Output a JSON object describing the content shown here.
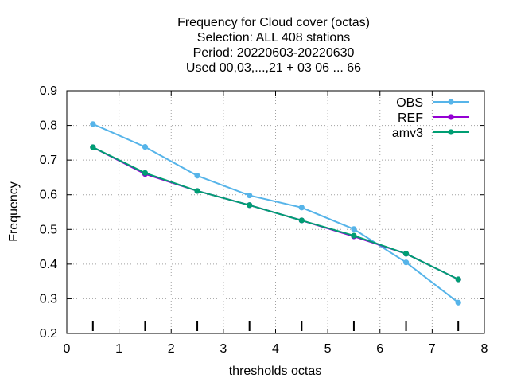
{
  "chart_data": {
    "type": "line",
    "title_lines": [
      "Frequency  for Cloud cover (octas)",
      "Selection: ALL    408 stations",
      "Period: 20220603-20220630",
      "Used  00,03,...,21  + 03 06 ... 66"
    ],
    "xlabel": "thresholds octas",
    "ylabel": "Frequency",
    "xlim": [
      0,
      8
    ],
    "ylim": [
      0.2,
      0.9
    ],
    "xticks": [
      0,
      1,
      2,
      3,
      4,
      5,
      6,
      7,
      8
    ],
    "yticks": [
      0.2,
      0.3,
      0.4,
      0.5,
      0.6,
      0.7,
      0.8,
      0.9
    ],
    "xtick_labels": [
      "0",
      "1",
      "2",
      "3",
      "4",
      "5",
      "6",
      "7",
      "8"
    ],
    "ytick_labels": [
      "0.2",
      "0.3",
      "0.4",
      "0.5",
      "0.6",
      "0.7",
      "0.8",
      "0.9"
    ],
    "grid": true,
    "legend_position": "top-right",
    "series": [
      {
        "name": "OBS",
        "color": "#56b4e9",
        "x": [
          0.5,
          1.5,
          2.5,
          3.5,
          4.5,
          5.5,
          6.5,
          7.5
        ],
        "values": [
          0.804,
          0.738,
          0.655,
          0.598,
          0.563,
          0.501,
          0.405,
          0.289
        ]
      },
      {
        "name": "REF",
        "color": "#9400d3",
        "x": [
          0.5,
          1.5,
          2.5,
          3.5,
          4.5,
          5.5,
          6.5,
          7.5
        ],
        "values": [
          0.737,
          0.66,
          0.611,
          0.57,
          0.526,
          0.48,
          0.43,
          0.356
        ]
      },
      {
        "name": "amv3",
        "color": "#009e73",
        "x": [
          0.5,
          1.5,
          2.5,
          3.5,
          4.5,
          5.5,
          6.5,
          7.5
        ],
        "values": [
          0.737,
          0.663,
          0.611,
          0.57,
          0.526,
          0.482,
          0.43,
          0.356
        ]
      }
    ],
    "tick_marks_x": [
      0.5,
      1.5,
      2.5,
      3.5,
      4.5,
      5.5,
      6.5,
      7.5
    ]
  }
}
